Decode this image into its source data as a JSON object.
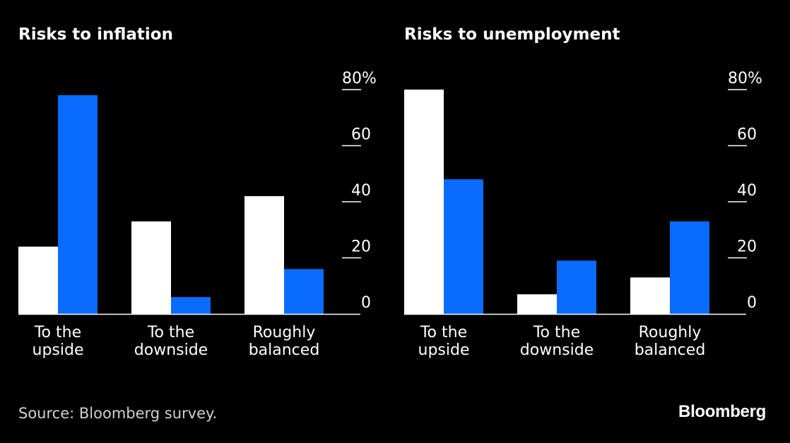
{
  "colors": {
    "background": "#000000",
    "series_a": "#ffffff",
    "series_b": "#0a6cff",
    "axis": "#ffffff"
  },
  "source": "Source: Bloomberg survey.",
  "brand": "Bloomberg",
  "chart_data": [
    {
      "type": "bar",
      "title": "Risks to inflation",
      "categories": [
        [
          "To the",
          "upside"
        ],
        [
          "To the",
          "downside"
        ],
        [
          "Roughly",
          "balanced"
        ]
      ],
      "series": [
        {
          "values": [
            24,
            33,
            42
          ],
          "color": "#ffffff"
        },
        {
          "values": [
            78,
            6,
            16
          ],
          "color": "#0a6cff"
        }
      ],
      "yticks": [
        "0",
        "20",
        "40",
        "60",
        "80%"
      ],
      "ylim": [
        0,
        80
      ],
      "y_axis_position": "right",
      "grid": false
    },
    {
      "type": "bar",
      "title": "Risks to unemployment",
      "categories": [
        [
          "To the",
          "upside"
        ],
        [
          "To the",
          "downside"
        ],
        [
          "Roughly",
          "balanced"
        ]
      ],
      "series": [
        {
          "values": [
            80,
            7,
            13
          ],
          "color": "#ffffff"
        },
        {
          "values": [
            48,
            19,
            33
          ],
          "color": "#0a6cff"
        }
      ],
      "yticks": [
        "0",
        "20",
        "40",
        "60",
        "80%"
      ],
      "ylim": [
        0,
        80
      ],
      "y_axis_position": "right",
      "grid": false
    }
  ]
}
